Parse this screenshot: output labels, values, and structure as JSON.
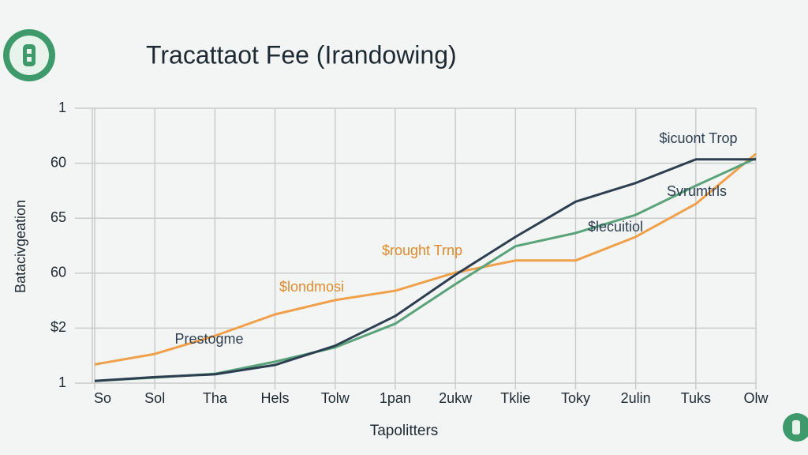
{
  "chart_data": {
    "type": "line",
    "title": "Tracattaot Fee (Irandowing)",
    "x_label": "Tapolitters",
    "y_label": "Batacivgeation",
    "categories": [
      "So",
      "Sol",
      "Tha",
      "Hels",
      "Tolw",
      "1pan",
      "2ukw",
      "Tklie",
      "Toky",
      "2ulin",
      "Tuks",
      "Olw"
    ],
    "ylim": [
      0,
      5
    ],
    "yticks": [
      {
        "value": 0,
        "label": "1"
      },
      {
        "value": 1,
        "label": "$2"
      },
      {
        "value": 2,
        "label": "60"
      },
      {
        "value": 3,
        "label": "65"
      },
      {
        "value": 4,
        "label": "60"
      },
      {
        "value": 5,
        "label": "1"
      }
    ],
    "grid": true,
    "series": [
      {
        "color": "#f0a04b",
        "values": [
          0.34,
          0.53,
          0.86,
          1.25,
          1.51,
          1.68,
          2.01,
          2.23,
          2.23,
          2.66,
          3.26,
          4.17
        ]
      },
      {
        "color": "#5aa37a",
        "values": [
          0.04,
          0.1,
          0.17,
          0.39,
          0.65,
          1.08,
          1.8,
          2.49,
          2.73,
          3.06,
          3.59,
          4.09
        ]
      },
      {
        "color": "#2c3e50",
        "values": [
          0.04,
          0.11,
          0.16,
          0.33,
          0.68,
          1.22,
          1.97,
          2.66,
          3.3,
          3.64,
          4.07,
          4.07
        ]
      }
    ],
    "annotations": [
      {
        "text": "$icuont Trop",
        "color": "#2c3e50"
      },
      {
        "text": "Svrumtrls",
        "color": "#2c3e50"
      },
      {
        "text": "$lecuitiol",
        "color": "#2c3e50"
      },
      {
        "text": "$rought Trnp",
        "color": "#e08a2c"
      },
      {
        "text": "$londmosi",
        "color": "#e08a2c"
      },
      {
        "text": "Prestogme",
        "color": "#2c3e50"
      }
    ]
  }
}
